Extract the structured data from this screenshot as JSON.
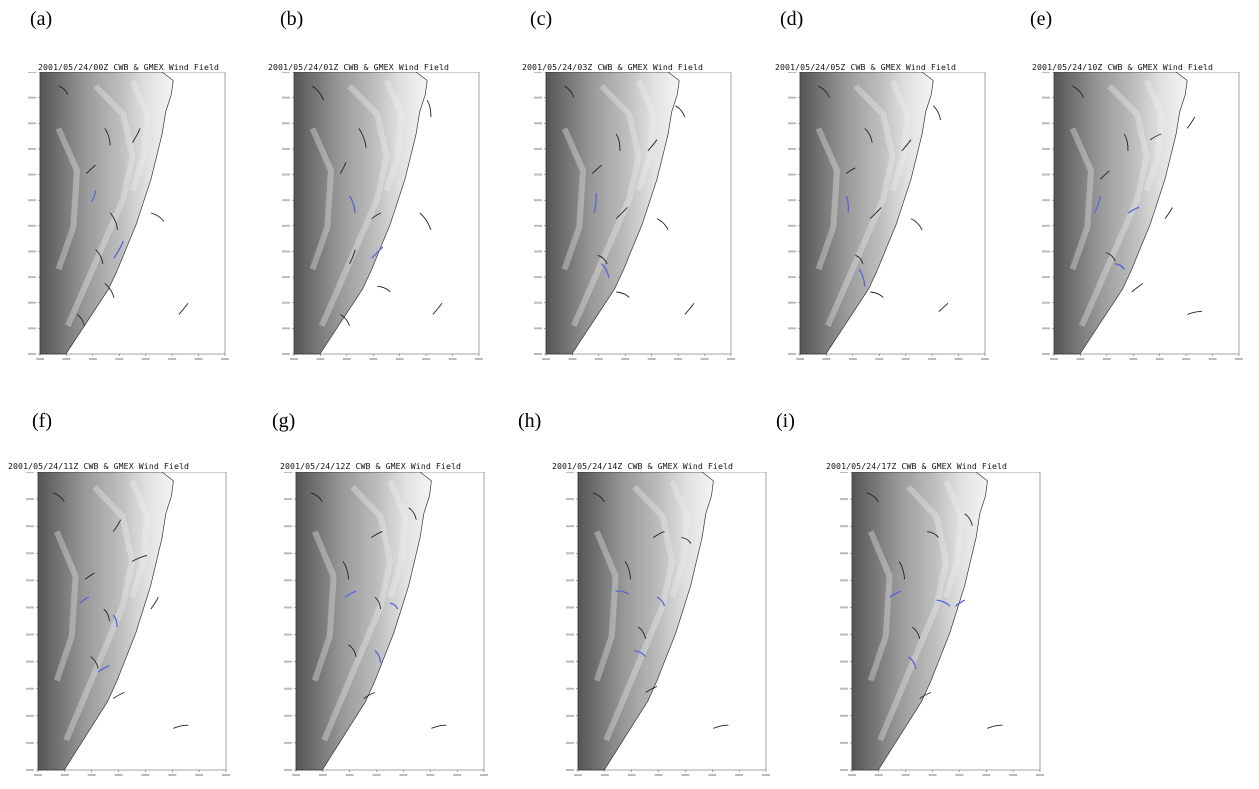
{
  "panels": [
    {
      "label": "(a)",
      "title": "2001/05/24/00Z  CWB & GMEX Wind Field"
    },
    {
      "label": "(b)",
      "title": "2001/05/24/01Z  CWB & GMEX Wind Field"
    },
    {
      "label": "(c)",
      "title": "2001/05/24/03Z  CWB & GMEX Wind Field"
    },
    {
      "label": "(d)",
      "title": "2001/05/24/05Z  CWB & GMEX Wind Field"
    },
    {
      "label": "(e)",
      "title": "2001/05/24/10Z  CWB & GMEX Wind Field"
    },
    {
      "label": "(f)",
      "title": "2001/05/24/11Z  CWB & GMEX Wind Field"
    },
    {
      "label": "(g)",
      "title": "2001/05/24/12Z  CWB & GMEX Wind Field"
    },
    {
      "label": "(h)",
      "title": "2001/05/24/14Z  CWB & GMEX Wind Field"
    },
    {
      "label": "(i)",
      "title": "2001/05/24/17Z  CWB & GMEX Wind Field"
    }
  ],
  "colors": {
    "terrain_dark": "#4a4a4a",
    "terrain_light": "#d8d8d8",
    "sea": "#ffffff",
    "vector_black": "#222222",
    "vector_blue": "#5566dd"
  }
}
